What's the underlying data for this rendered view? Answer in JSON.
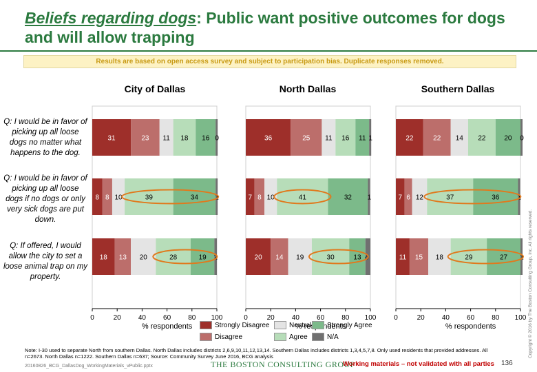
{
  "header": {
    "title_em": "Beliefs regarding dogs",
    "title_rest": ": Public want positive outcomes for dogs and will allow trapping",
    "banner": "Results are based on open access survey and subject to participation bias. Duplicate responses removed."
  },
  "panels": [
    "City of Dallas",
    "North Dallas",
    "Southern Dallas"
  ],
  "questions": [
    "Q: I would be in favor of picking up all loose dogs no matter what happens to the dog.",
    "Q: I would be in favor of picking up all loose dogs if no dogs or only very sick dogs are put down.",
    "Q: If offered, I would allow the city to set a loose animal trap on my property."
  ],
  "colors": {
    "strongly_disagree": "#9e2f2a",
    "disagree": "#bc6e6b",
    "neutral": "#e4e4e4",
    "agree": "#b7ddb9",
    "strongly_agree": "#7cba8a",
    "na": "#707070",
    "highlight": "#e07a1e"
  },
  "chart_data": {
    "type": "bar",
    "orientation": "horizontal",
    "stacked": true,
    "xlabel": "% respondents",
    "xlim": [
      0,
      100
    ],
    "xticks": [
      0,
      20,
      40,
      60,
      80,
      100
    ],
    "categories": [
      "Strongly Disagree",
      "Disagree",
      "Neutral",
      "Agree",
      "Strongly Agree",
      "N/A"
    ],
    "legend_position": "bottom",
    "panels": [
      {
        "title": "City of Dallas",
        "rows": [
          [
            31,
            23,
            11,
            18,
            16,
            0
          ],
          [
            8,
            8,
            10,
            39,
            34,
            1
          ],
          [
            18,
            13,
            20,
            28,
            19,
            2
          ]
        ]
      },
      {
        "title": "North Dallas",
        "rows": [
          [
            36,
            25,
            11,
            16,
            11,
            1
          ],
          [
            7,
            8,
            10,
            41,
            32,
            1
          ],
          [
            20,
            14,
            19,
            30,
            13,
            4
          ]
        ]
      },
      {
        "title": "Southern Dallas",
        "rows": [
          [
            22,
            22,
            14,
            22,
            20,
            0
          ],
          [
            7,
            6,
            12,
            37,
            36,
            1
          ],
          [
            11,
            15,
            18,
            29,
            27,
            1
          ]
        ]
      }
    ],
    "highlighted": [
      {
        "panel": 0,
        "row": 1,
        "segments": [
          3,
          4
        ]
      },
      {
        "panel": 0,
        "row": 2,
        "segments": [
          3,
          4
        ]
      },
      {
        "panel": 1,
        "row": 1,
        "segments": [
          3
        ]
      },
      {
        "panel": 1,
        "row": 2,
        "segments": [
          3,
          4
        ]
      },
      {
        "panel": 2,
        "row": 1,
        "segments": [
          3,
          4
        ]
      },
      {
        "panel": 2,
        "row": 2,
        "segments": [
          3,
          4
        ]
      }
    ]
  },
  "legend": [
    {
      "label": "Strongly Disagree",
      "color": "#9e2f2a"
    },
    {
      "label": "Neutral",
      "color": "#e4e4e4"
    },
    {
      "label": "Strongly Agree",
      "color": "#7cba8a"
    },
    {
      "label": "Disagree",
      "color": "#bc6e6b"
    },
    {
      "label": "Agree",
      "color": "#b7ddb9"
    },
    {
      "label": "N/A",
      "color": "#707070"
    }
  ],
  "footer": {
    "note": "Note: I-30 used to separate North from southern Dallas. North Dallas includes districts 2,6,9,10,11,12,13,14. Southern Dallas includes districts 1,3,4,5,7,8. Only used residents that provided addresses. All n=2673. North Dallas n=1222. Southern Dallas n=637; Source: Community Survey June 2016, BCG analysis",
    "file": "20160826_BCG_DallasDog_WorkingMaterials_vPublic.pptx",
    "logo": "THE BOSTON CONSULTING GROUP",
    "warning": "Working materials – not validated with all parties",
    "page": "136",
    "copyright": "Copyright © 2016 by The Boston Consulting Group, Inc. All rights reserved."
  }
}
